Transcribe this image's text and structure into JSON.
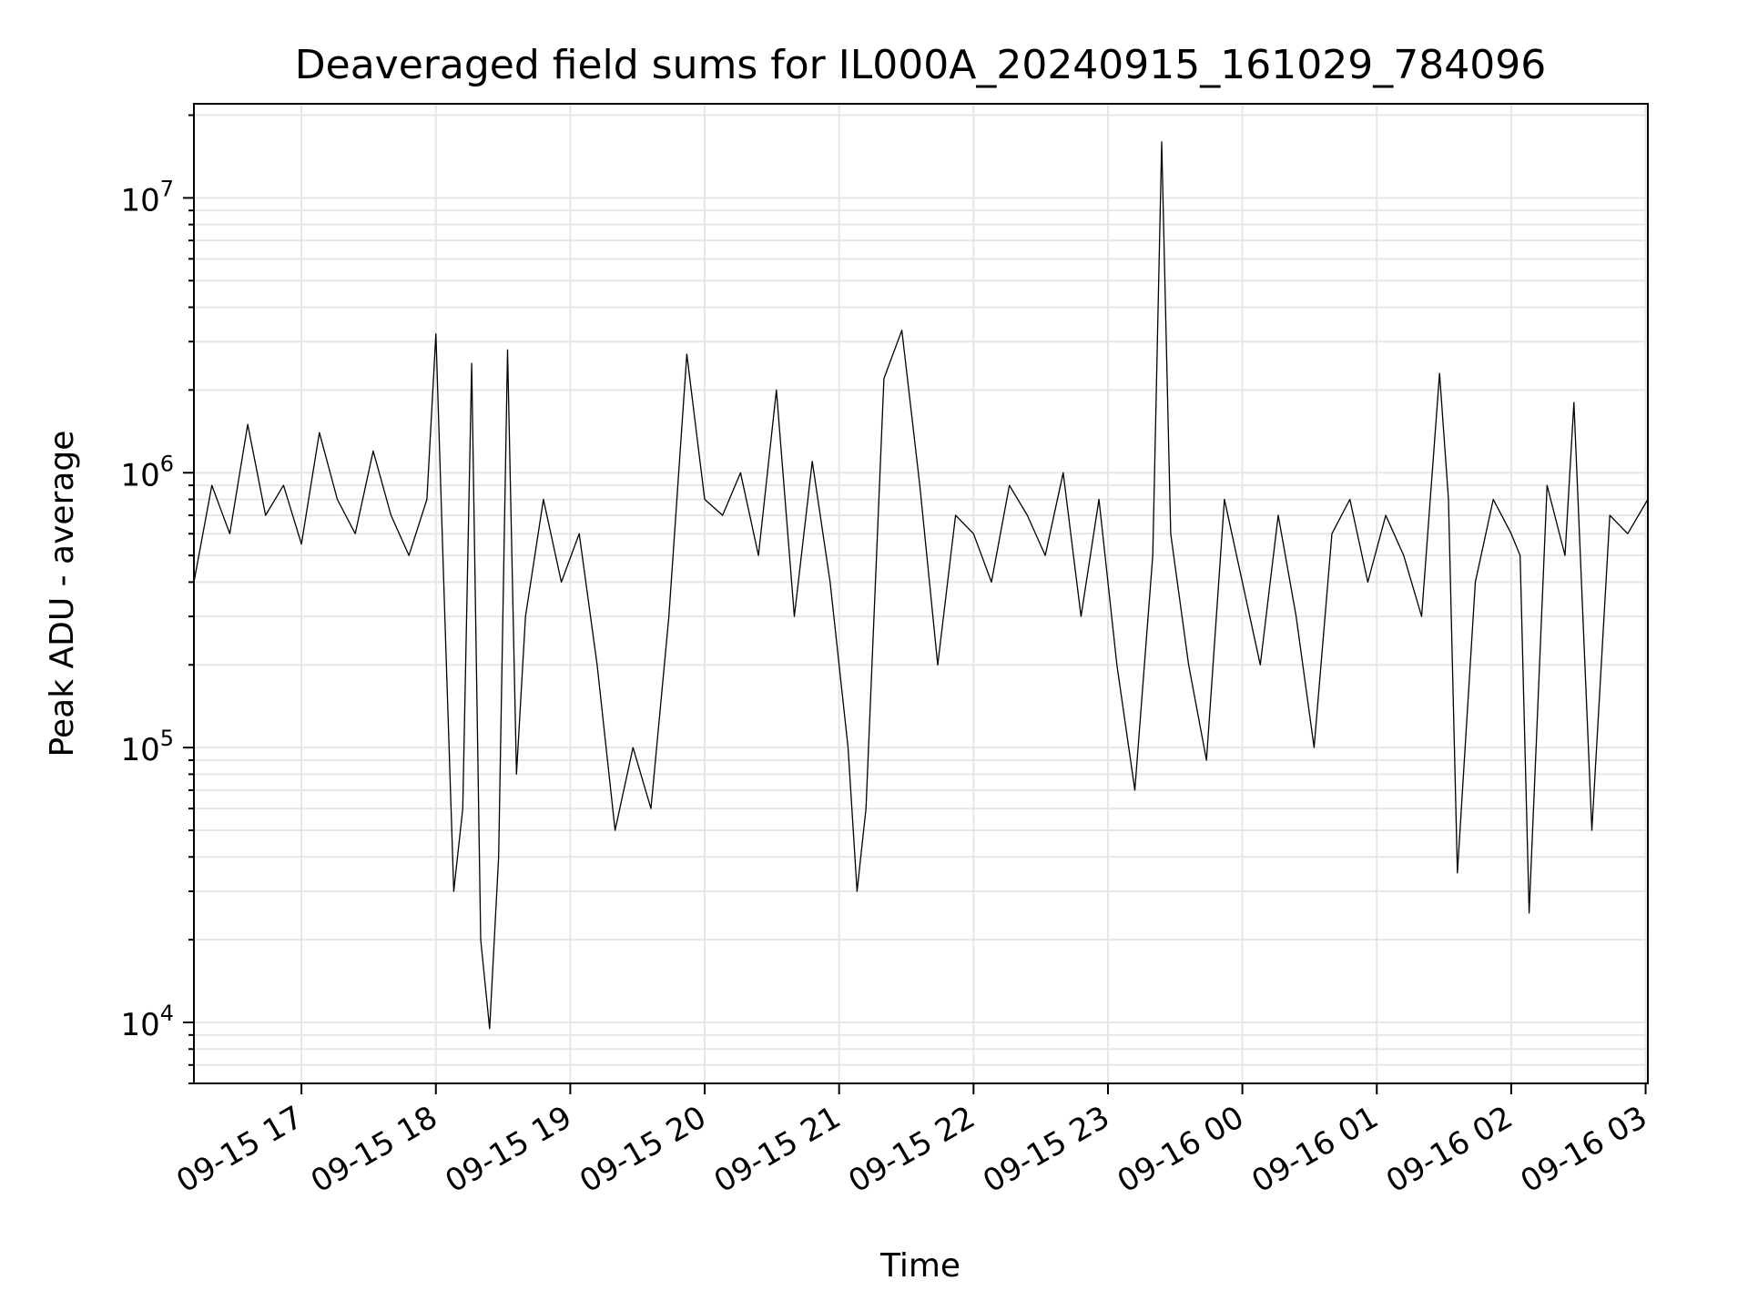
{
  "chart_data": {
    "type": "line",
    "title": "Deaveraged field sums for IL000A_20240915_161029_784096",
    "xlabel": "Time",
    "ylabel": "Peak ADU - average",
    "y_scale": "log",
    "ylim": [
      6000,
      22000000
    ],
    "xlim": [
      "2024-09-15 16:12",
      "2024-09-16 03:01"
    ],
    "grid": "both (major and minor)",
    "legend": "none",
    "line_color": "#000000",
    "x_ticks": [
      "2024-09-15 17:00",
      "2024-09-15 18:00",
      "2024-09-15 19:00",
      "2024-09-15 20:00",
      "2024-09-15 21:00",
      "2024-09-15 22:00",
      "2024-09-15 23:00",
      "2024-09-16 00:00",
      "2024-09-16 01:00",
      "2024-09-16 02:00",
      "2024-09-16 03:00"
    ],
    "x_tick_labels": [
      "09-15 17",
      "09-15 18",
      "09-15 19",
      "09-15 20",
      "09-15 21",
      "09-15 22",
      "09-15 23",
      "09-16 00",
      "09-16 01",
      "09-16 02",
      "09-16 03"
    ],
    "y_ticks": [
      10000,
      100000,
      1000000,
      10000000
    ],
    "y_tick_labels": [
      {
        "base": "10",
        "exp": "4"
      },
      {
        "base": "10",
        "exp": "5"
      },
      {
        "base": "10",
        "exp": "6"
      },
      {
        "base": "10",
        "exp": "7"
      }
    ],
    "series": [
      {
        "x": [
          "2024-09-15 16:12",
          "2024-09-15 16:20",
          "2024-09-15 16:28",
          "2024-09-15 16:36",
          "2024-09-15 16:44",
          "2024-09-15 16:52",
          "2024-09-15 17:00",
          "2024-09-15 17:08",
          "2024-09-15 17:16",
          "2024-09-15 17:24",
          "2024-09-15 17:32",
          "2024-09-15 17:40",
          "2024-09-15 17:48",
          "2024-09-15 17:56",
          "2024-09-15 18:00",
          "2024-09-15 18:04",
          "2024-09-15 18:08",
          "2024-09-15 18:12",
          "2024-09-15 18:16",
          "2024-09-15 18:20",
          "2024-09-15 18:24",
          "2024-09-15 18:28",
          "2024-09-15 18:32",
          "2024-09-15 18:36",
          "2024-09-15 18:40",
          "2024-09-15 18:48",
          "2024-09-15 18:56",
          "2024-09-15 19:04",
          "2024-09-15 19:12",
          "2024-09-15 19:20",
          "2024-09-15 19:28",
          "2024-09-15 19:36",
          "2024-09-15 19:44",
          "2024-09-15 19:52",
          "2024-09-15 20:00",
          "2024-09-15 20:08",
          "2024-09-15 20:16",
          "2024-09-15 20:24",
          "2024-09-15 20:32",
          "2024-09-15 20:40",
          "2024-09-15 20:48",
          "2024-09-15 20:56",
          "2024-09-15 21:04",
          "2024-09-15 21:08",
          "2024-09-15 21:12",
          "2024-09-15 21:20",
          "2024-09-15 21:28",
          "2024-09-15 21:36",
          "2024-09-15 21:44",
          "2024-09-15 21:52",
          "2024-09-15 22:00",
          "2024-09-15 22:08",
          "2024-09-15 22:16",
          "2024-09-15 22:24",
          "2024-09-15 22:32",
          "2024-09-15 22:40",
          "2024-09-15 22:48",
          "2024-09-15 22:56",
          "2024-09-15 23:04",
          "2024-09-15 23:12",
          "2024-09-15 23:20",
          "2024-09-15 23:24",
          "2024-09-15 23:28",
          "2024-09-15 23:36",
          "2024-09-15 23:44",
          "2024-09-15 23:52",
          "2024-09-16 00:00",
          "2024-09-16 00:08",
          "2024-09-16 00:16",
          "2024-09-16 00:24",
          "2024-09-16 00:32",
          "2024-09-16 00:40",
          "2024-09-16 00:48",
          "2024-09-16 00:56",
          "2024-09-16 01:04",
          "2024-09-16 01:12",
          "2024-09-16 01:20",
          "2024-09-16 01:28",
          "2024-09-16 01:32",
          "2024-09-16 01:36",
          "2024-09-16 01:44",
          "2024-09-16 01:52",
          "2024-09-16 02:00",
          "2024-09-16 02:04",
          "2024-09-16 02:08",
          "2024-09-16 02:16",
          "2024-09-16 02:24",
          "2024-09-16 02:28",
          "2024-09-16 02:36",
          "2024-09-16 02:44",
          "2024-09-16 02:52",
          "2024-09-16 03:01"
        ],
        "y": [
          400000,
          900000,
          600000,
          1500000,
          700000,
          900000,
          550000,
          1400000,
          800000,
          600000,
          1200000,
          700000,
          500000,
          800000,
          3200000,
          300000,
          30000,
          60000,
          2500000,
          20000,
          9500,
          40000,
          2800000,
          80000,
          300000,
          800000,
          400000,
          600000,
          200000,
          50000,
          100000,
          60000,
          300000,
          2700000,
          800000,
          700000,
          1000000,
          500000,
          2000000,
          300000,
          1100000,
          400000,
          100000,
          30000,
          60000,
          2200000,
          3300000,
          900000,
          200000,
          700000,
          600000,
          400000,
          900000,
          700000,
          500000,
          1000000,
          300000,
          800000,
          200000,
          70000,
          500000,
          16000000,
          600000,
          200000,
          90000,
          800000,
          400000,
          200000,
          700000,
          300000,
          100000,
          600000,
          800000,
          400000,
          700000,
          500000,
          300000,
          2300000,
          800000,
          35000,
          400000,
          800000,
          600000,
          500000,
          25000,
          900000,
          500000,
          1800000,
          50000,
          700000,
          600000,
          800000
        ]
      }
    ]
  }
}
